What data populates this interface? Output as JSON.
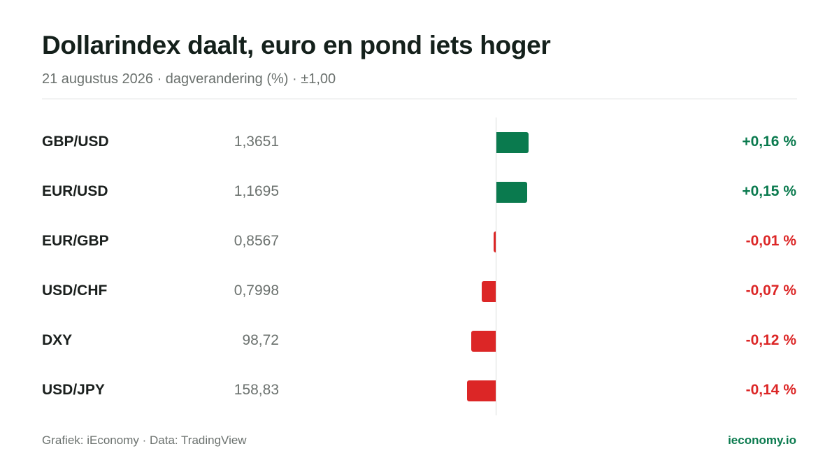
{
  "header": {
    "title": "Dollarindex daalt, euro en pond iets hoger",
    "subtitle": "21 augustus 2026 · dagverandering (%) · ±1,00"
  },
  "footer": {
    "source": "Grafiek: iEconomy · Data: TradingView",
    "brand": "ieconomy.io"
  },
  "colors": {
    "positive": "#0a7a4e",
    "negative": "#dc2626"
  },
  "chart_data": {
    "type": "bar",
    "orientation": "horizontal",
    "xlim": [
      -1.0,
      1.0
    ],
    "grid": false,
    "categories": [
      "GBP/USD",
      "EUR/USD",
      "EUR/GBP",
      "USD/CHF",
      "DXY",
      "USD/JPY"
    ],
    "values": [
      0.16,
      0.15,
      -0.01,
      -0.07,
      -0.12,
      -0.14
    ],
    "rows": [
      {
        "pair": "GBP/USD",
        "price": "1,3651",
        "change": 0.16,
        "change_label": "+0,16 %"
      },
      {
        "pair": "EUR/USD",
        "price": "1,1695",
        "change": 0.15,
        "change_label": "+0,15 %"
      },
      {
        "pair": "EUR/GBP",
        "price": "0,8567",
        "change": -0.01,
        "change_label": "-0,01 %"
      },
      {
        "pair": "USD/CHF",
        "price": "0,7998",
        "change": -0.07,
        "change_label": "-0,07 %"
      },
      {
        "pair": "DXY",
        "price": "98,72",
        "change": -0.12,
        "change_label": "-0,12 %"
      },
      {
        "pair": "USD/JPY",
        "price": "158,83",
        "change": -0.14,
        "change_label": "-0,14 %"
      }
    ]
  }
}
